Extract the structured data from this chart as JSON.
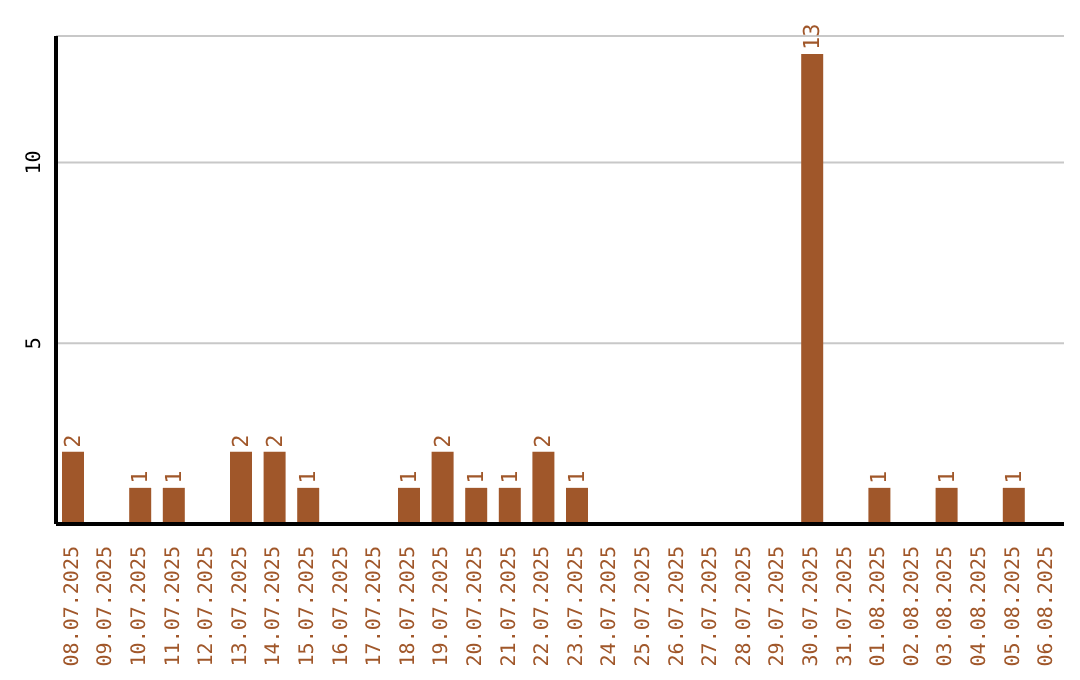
{
  "chart_data": {
    "type": "bar",
    "categories": [
      "08.07.2025",
      "09.07.2025",
      "10.07.2025",
      "11.07.2025",
      "12.07.2025",
      "13.07.2025",
      "14.07.2025",
      "15.07.2025",
      "16.07.2025",
      "17.07.2025",
      "18.07.2025",
      "19.07.2025",
      "20.07.2025",
      "21.07.2025",
      "22.07.2025",
      "23.07.2025",
      "24.07.2025",
      "25.07.2025",
      "26.07.2025",
      "27.07.2025",
      "28.07.2025",
      "29.07.2025",
      "30.07.2025",
      "31.07.2025",
      "01.08.2025",
      "02.08.2025",
      "03.08.2025",
      "04.08.2025",
      "05.08.2025",
      "06.08.2025"
    ],
    "values": [
      2,
      0,
      1,
      1,
      0,
      2,
      2,
      1,
      0,
      0,
      1,
      2,
      1,
      1,
      2,
      1,
      0,
      0,
      0,
      0,
      0,
      0,
      13,
      0,
      1,
      0,
      1,
      0,
      1,
      0
    ],
    "value_labels": [
      "2",
      null,
      "1",
      "1",
      null,
      "2",
      "2",
      "1",
      null,
      null,
      "1",
      "2",
      "1",
      "1",
      "2",
      "1",
      null,
      null,
      null,
      null,
      null,
      null,
      "13",
      null,
      "1",
      null,
      "1",
      null,
      "1",
      null
    ],
    "color": "#a0572a",
    "ylim": [
      0,
      13.5
    ],
    "yticks": [
      5,
      10
    ],
    "grid": "y",
    "legend": false
  }
}
